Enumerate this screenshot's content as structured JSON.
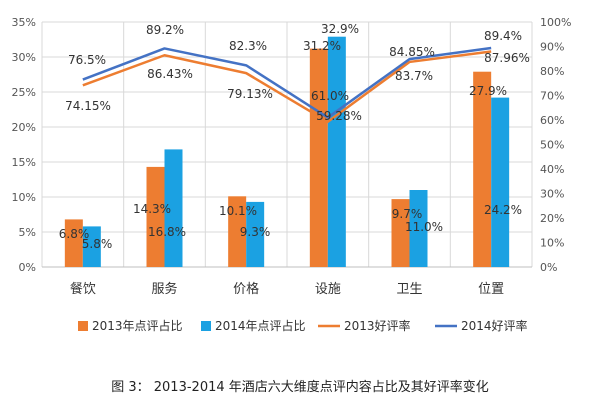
{
  "caption": "图 3： 2013-2014 年酒店六大维度点评内容占比及其好评率变化",
  "chart_data": {
    "type": "bar",
    "categories": [
      "餐饮",
      "服务",
      "价格",
      "设施",
      "卫生",
      "位置"
    ],
    "bar_series": [
      {
        "name": "2013年点评占比",
        "color": "#ED7D31",
        "values": [
          6.8,
          14.3,
          10.1,
          31.2,
          9.7,
          27.9
        ],
        "labels": [
          "6.8%",
          "14.3%",
          "10.1%",
          "31.2%",
          "9.7%",
          "27.9%"
        ]
      },
      {
        "name": "2014年点评占比",
        "color": "#1BA1E2",
        "values": [
          5.8,
          16.8,
          9.3,
          32.9,
          11.0,
          24.2
        ],
        "labels": [
          "5.8%",
          "16.8%",
          "9.3%",
          "32.9%",
          "11.0%",
          "24.2%"
        ]
      }
    ],
    "line_series": [
      {
        "name": "2013好评率",
        "color": "#ED7D31",
        "values": [
          74.15,
          86.43,
          79.13,
          59.28,
          83.7,
          87.96
        ],
        "labels": [
          "74.15%",
          "86.43%",
          "79.13%",
          "59.28%",
          "83.7%",
          "87.96%"
        ]
      },
      {
        "name": "2014好评率",
        "color": "#4472C4",
        "values": [
          76.5,
          89.2,
          82.3,
          61.0,
          84.85,
          89.4
        ],
        "labels": [
          "76.5%",
          "89.2%",
          "82.3%",
          "61.0%",
          "84.85%",
          "89.4%"
        ]
      }
    ],
    "y_left": {
      "min": 0,
      "max": 35,
      "ticks": [
        "0%",
        "5%",
        "10%",
        "15%",
        "20%",
        "25%",
        "30%",
        "35%"
      ]
    },
    "y_right": {
      "min": 0,
      "max": 100,
      "ticks": [
        "0%",
        "10%",
        "20%",
        "30%",
        "40%",
        "50%",
        "60%",
        "70%",
        "80%",
        "90%",
        "100%"
      ]
    },
    "grid": true,
    "legend": "bottom"
  }
}
